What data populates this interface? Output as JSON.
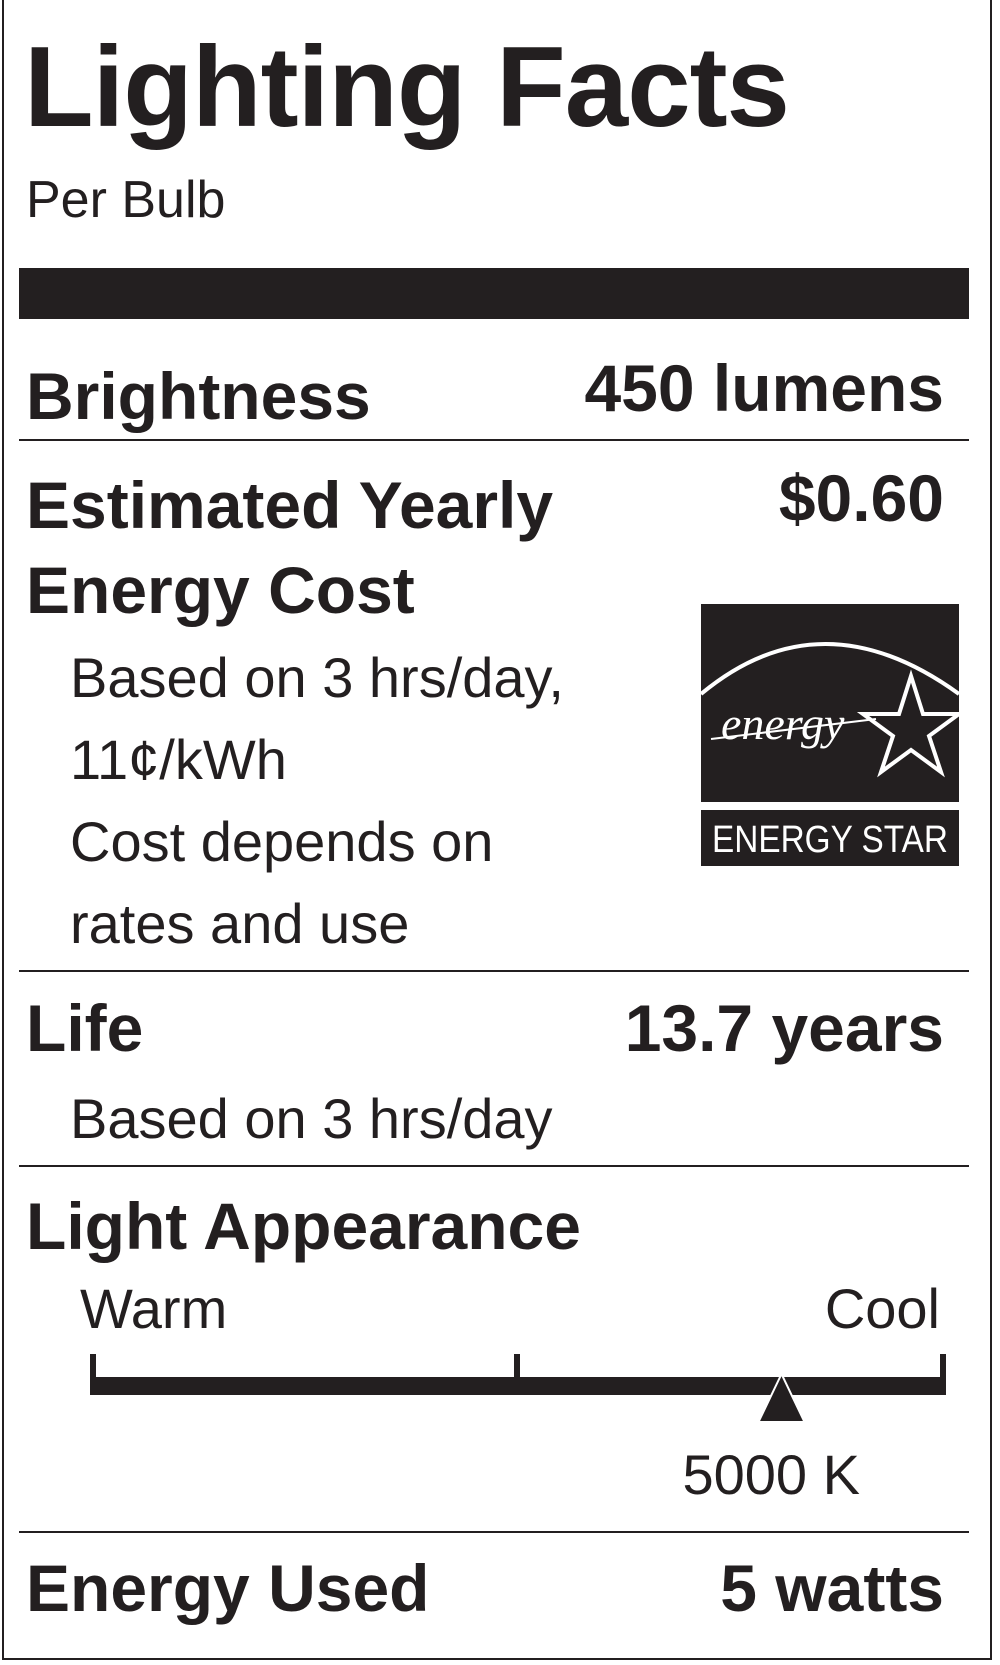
{
  "title": "Lighting Facts",
  "subtitle": "Per Bulb",
  "brightness": {
    "label": "Brightness",
    "value": "450 lumens"
  },
  "cost": {
    "label_line1": "Estimated Yearly",
    "label_line2": "Energy Cost",
    "value": "$0.60",
    "notes": [
      "Based on 3 hrs/day,",
      "11¢/kWh",
      "Cost depends on",
      "rates and use"
    ]
  },
  "energy_star": {
    "logo_script": "energy",
    "label": "ENERGY STAR"
  },
  "life": {
    "label": "Life",
    "value": "13.7 years",
    "note": "Based on 3 hrs/day"
  },
  "appearance": {
    "label": "Light Appearance",
    "warm_label": "Warm",
    "cool_label": "Cool",
    "marker_value": "5000 K",
    "marker_fraction": 0.81
  },
  "energy_used": {
    "label": "Energy Used",
    "value": "5 watts"
  },
  "colors": {
    "ink": "#231f20",
    "background": "#ffffff"
  }
}
